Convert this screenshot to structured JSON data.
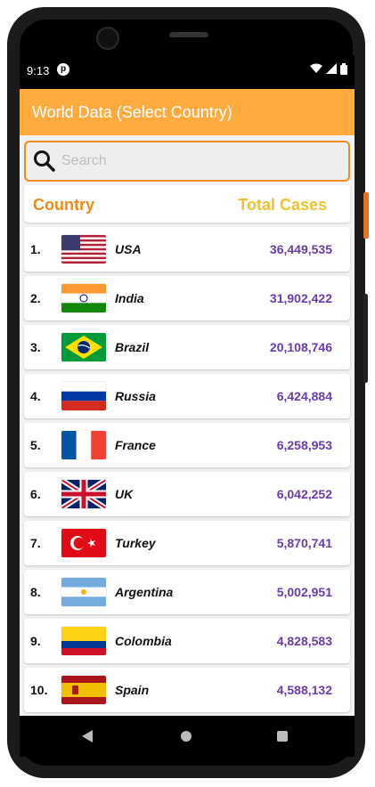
{
  "status_bar": {
    "time": "9:13",
    "notification_icon": "app-notification-icon",
    "icons": [
      "wifi-icon",
      "signal-icon",
      "battery-icon"
    ]
  },
  "app_bar": {
    "title": "World Data (Select Country)",
    "color": "#ffab40"
  },
  "search": {
    "placeholder": "Search",
    "value": ""
  },
  "table_header": {
    "country": "Country",
    "total_cases": "Total Cases"
  },
  "rows": [
    {
      "rank": "1.",
      "country": "USA",
      "cases": "36,449,535",
      "flag": "usa-flag-icon"
    },
    {
      "rank": "2.",
      "country": "India",
      "cases": "31,902,422",
      "flag": "india-flag-icon"
    },
    {
      "rank": "3.",
      "country": "Brazil",
      "cases": "20,108,746",
      "flag": "brazil-flag-icon"
    },
    {
      "rank": "4.",
      "country": "Russia",
      "cases": "6,424,884",
      "flag": "russia-flag-icon"
    },
    {
      "rank": "5.",
      "country": "France",
      "cases": "6,258,953",
      "flag": "france-flag-icon"
    },
    {
      "rank": "6.",
      "country": "UK",
      "cases": "6,042,252",
      "flag": "uk-flag-icon"
    },
    {
      "rank": "7.",
      "country": "Turkey",
      "cases": "5,870,741",
      "flag": "turkey-flag-icon"
    },
    {
      "rank": "8.",
      "country": "Argentina",
      "cases": "5,002,951",
      "flag": "argentina-flag-icon"
    },
    {
      "rank": "9.",
      "country": "Colombia",
      "cases": "4,828,583",
      "flag": "colombia-flag-icon"
    },
    {
      "rank": "10.",
      "country": "Spain",
      "cases": "4,588,132",
      "flag": "spain-flag-icon"
    }
  ],
  "colors": {
    "accent": "#ef8a18",
    "cases_text": "#6a3bb0",
    "header_cases": "#f2c12e"
  }
}
